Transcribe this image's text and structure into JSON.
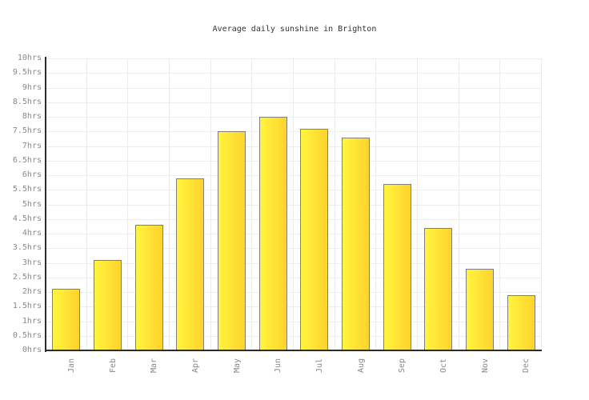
{
  "chart_data": {
    "type": "bar",
    "title": "Average daily sunshine in Brighton",
    "categories": [
      "Jan",
      "Feb",
      "Mar",
      "Apr",
      "May",
      "Jun",
      "Jul",
      "Aug",
      "Sep",
      "Oct",
      "Nov",
      "Dec"
    ],
    "values": [
      2.1,
      3.1,
      4.3,
      5.9,
      7.5,
      8.0,
      7.6,
      7.3,
      5.7,
      4.2,
      2.8,
      1.9
    ],
    "unit": "hrs",
    "xlabel": "",
    "ylabel": "",
    "ylim": [
      0,
      10
    ],
    "ytick_step": 0.5,
    "ytick_labels": [
      "0hrs",
      "0.5hrs",
      "1hrs",
      "1.5hrs",
      "2hrs",
      "2.5hrs",
      "3hrs",
      "3.5hrs",
      "4hrs",
      "4.5hrs",
      "5hrs",
      "5.5hrs",
      "6hrs",
      "6.5hrs",
      "7hrs",
      "7.5hrs",
      "8hrs",
      "8.5hrs",
      "9hrs",
      "9.5hrs",
      "10hrs"
    ],
    "grid": true,
    "legend": false,
    "colors": {
      "bar_fill_left": "#fff53d",
      "bar_fill_right": "#ffd22e",
      "bar_border": "#7f7f7f",
      "grid": "#ececec",
      "axis": "#2b2b2b",
      "tick_label": "#888888",
      "title": "#333333",
      "background": "#ffffff"
    }
  }
}
